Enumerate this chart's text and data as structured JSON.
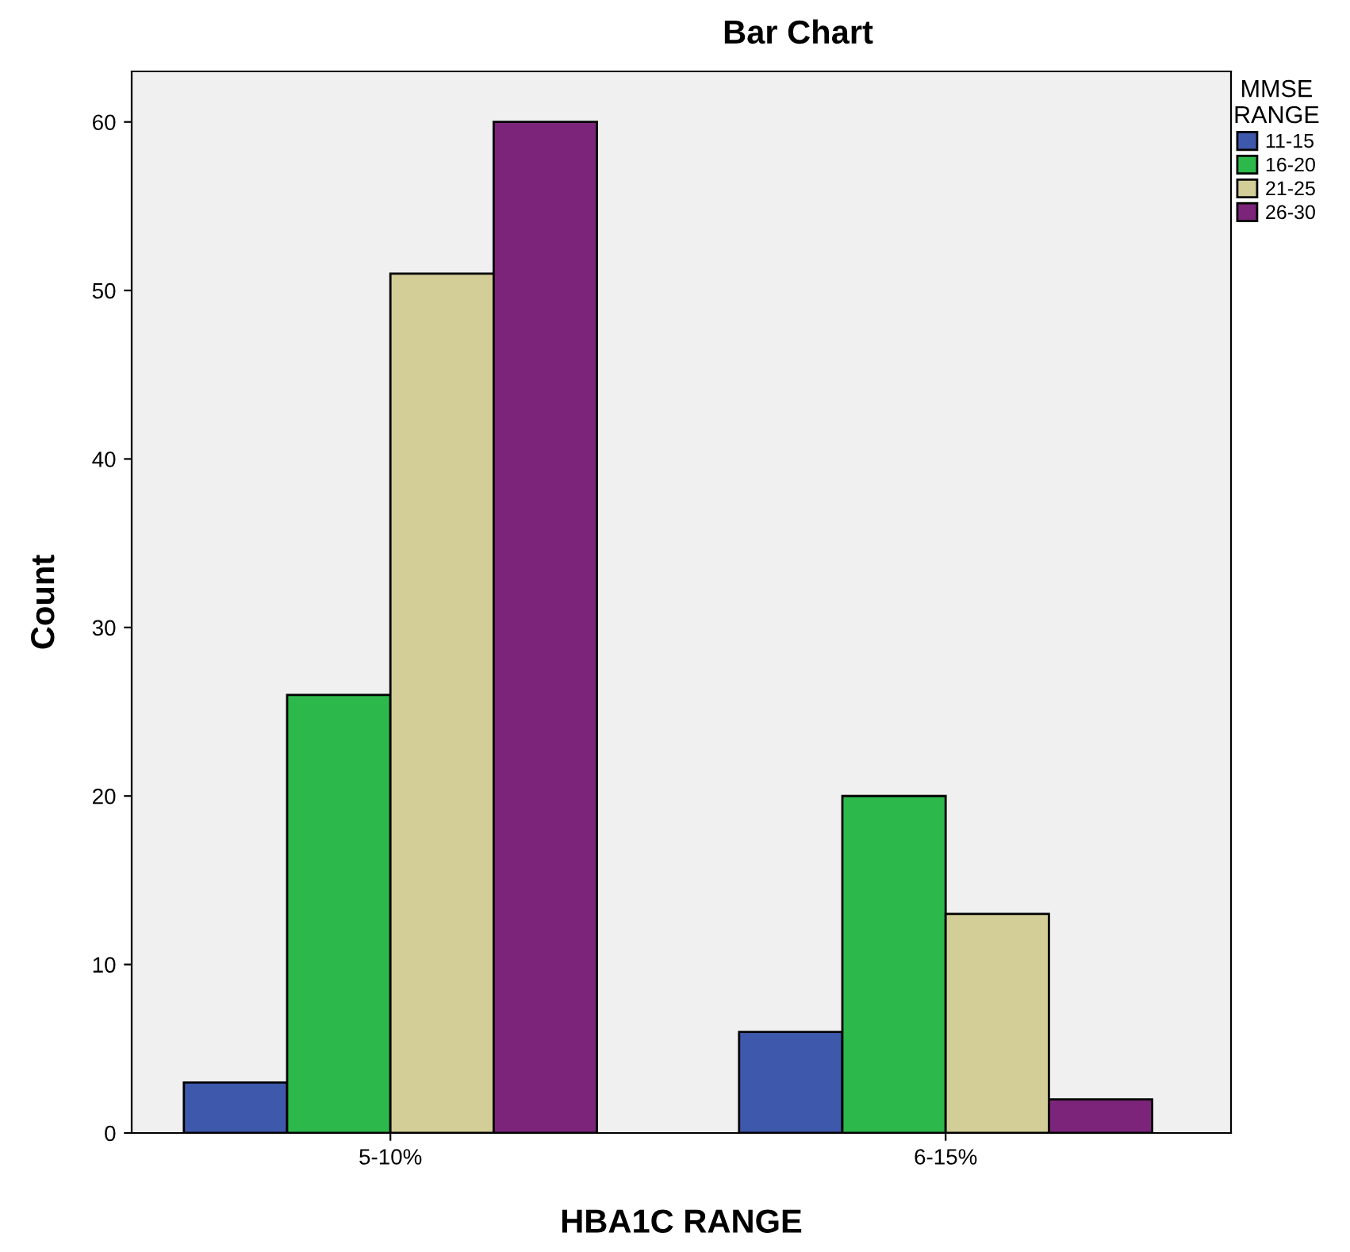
{
  "chart_data": {
    "type": "bar",
    "title": "Bar Chart",
    "xlabel": "HBA1C RANGE",
    "ylabel": "Count",
    "legend_title": "MMSE\nRANGE",
    "categories": [
      "5-10%",
      "6-15%"
    ],
    "series": [
      {
        "name": "11-15",
        "color": "#3e58ac",
        "values": [
          3,
          6
        ]
      },
      {
        "name": "16-20",
        "color": "#2db84b",
        "values": [
          26,
          20
        ]
      },
      {
        "name": "21-25",
        "color": "#d3ce97",
        "values": [
          51,
          13
        ]
      },
      {
        "name": "26-30",
        "color": "#7b2479",
        "values": [
          60,
          2
        ]
      }
    ],
    "ylim": [
      0,
      63
    ],
    "yticks": [
      0,
      10,
      20,
      30,
      40,
      50,
      60
    ],
    "grid": false,
    "legend": "right"
  }
}
